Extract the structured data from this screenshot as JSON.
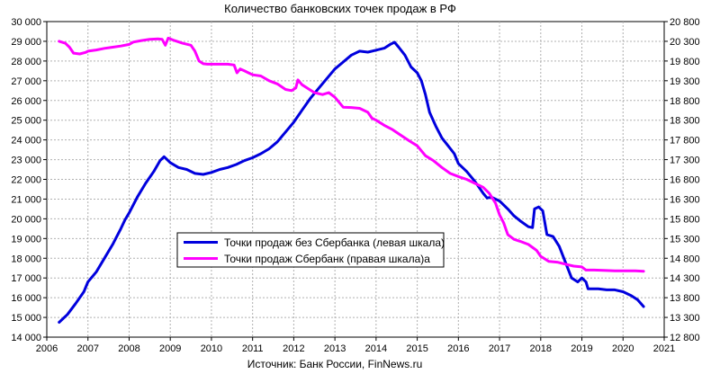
{
  "chart_data": {
    "type": "line",
    "title": "Количество банковских  точек продаж в РФ",
    "source": "Источник: Банк России, FinNews.ru",
    "x_range": [
      2006,
      2021
    ],
    "x_ticks": [
      "2006",
      "2007",
      "2008",
      "2009",
      "2010",
      "2011",
      "2012",
      "2013",
      "2014",
      "2015",
      "2016",
      "2017",
      "2018",
      "2019",
      "2020",
      "2021"
    ],
    "left_axis": {
      "range": [
        14000,
        30000
      ],
      "ticks": [
        "14 000",
        "15 000",
        "16 000",
        "17 000",
        "18 000",
        "19 000",
        "20 000",
        "21 000",
        "22 000",
        "23 000",
        "24 000",
        "25 000",
        "26 000",
        "27 000",
        "28 000",
        "29 000",
        "30 000"
      ]
    },
    "right_axis": {
      "range": [
        12800,
        20800
      ],
      "ticks": [
        "12 800",
        "13 300",
        "13 800",
        "14 300",
        "14 800",
        "15 300",
        "15 800",
        "16 300",
        "16 800",
        "17 300",
        "17 800",
        "18 300",
        "18 800",
        "19 300",
        "19 800",
        "20 300",
        "20 800"
      ]
    },
    "grid": true,
    "legend_position": "center-left",
    "series": [
      {
        "name": "Точки продаж без Сбербанка (левая шкала)",
        "axis": "left",
        "color": "#0000dd",
        "points": [
          [
            2006.3,
            14750
          ],
          [
            2006.5,
            15150
          ],
          [
            2006.7,
            15700
          ],
          [
            2006.9,
            16300
          ],
          [
            2007.0,
            16800
          ],
          [
            2007.2,
            17300
          ],
          [
            2007.4,
            18000
          ],
          [
            2007.6,
            18700
          ],
          [
            2007.8,
            19500
          ],
          [
            2007.9,
            19950
          ],
          [
            2008.0,
            20300
          ],
          [
            2008.2,
            21100
          ],
          [
            2008.4,
            21800
          ],
          [
            2008.6,
            22400
          ],
          [
            2008.75,
            22950
          ],
          [
            2008.85,
            23150
          ],
          [
            2009.0,
            22850
          ],
          [
            2009.2,
            22600
          ],
          [
            2009.4,
            22500
          ],
          [
            2009.6,
            22300
          ],
          [
            2009.8,
            22250
          ],
          [
            2010.0,
            22350
          ],
          [
            2010.2,
            22500
          ],
          [
            2010.4,
            22600
          ],
          [
            2010.6,
            22750
          ],
          [
            2010.8,
            22950
          ],
          [
            2011.0,
            23100
          ],
          [
            2011.2,
            23300
          ],
          [
            2011.4,
            23550
          ],
          [
            2011.6,
            23900
          ],
          [
            2011.8,
            24400
          ],
          [
            2012.0,
            24900
          ],
          [
            2012.2,
            25500
          ],
          [
            2012.4,
            26100
          ],
          [
            2012.6,
            26600
          ],
          [
            2012.8,
            27100
          ],
          [
            2013.0,
            27600
          ],
          [
            2013.2,
            27950
          ],
          [
            2013.4,
            28300
          ],
          [
            2013.6,
            28500
          ],
          [
            2013.8,
            28450
          ],
          [
            2014.0,
            28550
          ],
          [
            2014.2,
            28650
          ],
          [
            2014.35,
            28850
          ],
          [
            2014.45,
            28950
          ],
          [
            2014.55,
            28700
          ],
          [
            2014.7,
            28300
          ],
          [
            2014.85,
            27700
          ],
          [
            2015.0,
            27400
          ],
          [
            2015.1,
            27000
          ],
          [
            2015.2,
            26300
          ],
          [
            2015.3,
            25400
          ],
          [
            2015.45,
            24700
          ],
          [
            2015.6,
            24100
          ],
          [
            2015.75,
            23700
          ],
          [
            2015.9,
            23300
          ],
          [
            2016.0,
            22800
          ],
          [
            2016.2,
            22400
          ],
          [
            2016.4,
            21900
          ],
          [
            2016.6,
            21300
          ],
          [
            2016.7,
            21050
          ],
          [
            2016.8,
            21100
          ],
          [
            2017.0,
            20900
          ],
          [
            2017.2,
            20500
          ],
          [
            2017.35,
            20150
          ],
          [
            2017.5,
            19900
          ],
          [
            2017.7,
            19600
          ],
          [
            2017.8,
            19550
          ],
          [
            2017.85,
            20500
          ],
          [
            2017.95,
            20600
          ],
          [
            2018.05,
            20400
          ],
          [
            2018.15,
            19200
          ],
          [
            2018.3,
            19100
          ],
          [
            2018.45,
            18600
          ],
          [
            2018.6,
            17800
          ],
          [
            2018.75,
            17000
          ],
          [
            2018.9,
            16800
          ],
          [
            2019.0,
            17000
          ],
          [
            2019.1,
            16800
          ],
          [
            2019.15,
            16450
          ],
          [
            2019.4,
            16450
          ],
          [
            2019.6,
            16400
          ],
          [
            2019.8,
            16400
          ],
          [
            2020.0,
            16300
          ],
          [
            2020.2,
            16100
          ],
          [
            2020.35,
            15900
          ],
          [
            2020.5,
            15550
          ]
        ]
      },
      {
        "name": "Точки продаж Сбербанк (правая шкала)а",
        "axis": "right",
        "color": "#ff00ff",
        "points": [
          [
            2006.3,
            20300
          ],
          [
            2006.45,
            20250
          ],
          [
            2006.55,
            20150
          ],
          [
            2006.65,
            20000
          ],
          [
            2006.8,
            19980
          ],
          [
            2006.95,
            20020
          ],
          [
            2007.0,
            20050
          ],
          [
            2007.2,
            20080
          ],
          [
            2007.4,
            20120
          ],
          [
            2007.6,
            20150
          ],
          [
            2007.8,
            20180
          ],
          [
            2008.0,
            20220
          ],
          [
            2008.1,
            20280
          ],
          [
            2008.3,
            20320
          ],
          [
            2008.5,
            20350
          ],
          [
            2008.7,
            20360
          ],
          [
            2008.8,
            20350
          ],
          [
            2008.88,
            20200
          ],
          [
            2008.95,
            20380
          ],
          [
            2009.1,
            20320
          ],
          [
            2009.3,
            20250
          ],
          [
            2009.5,
            20200
          ],
          [
            2009.6,
            20050
          ],
          [
            2009.7,
            19800
          ],
          [
            2009.8,
            19730
          ],
          [
            2009.9,
            19720
          ],
          [
            2010.0,
            19720
          ],
          [
            2010.2,
            19720
          ],
          [
            2010.4,
            19720
          ],
          [
            2010.55,
            19700
          ],
          [
            2010.62,
            19500
          ],
          [
            2010.7,
            19600
          ],
          [
            2010.8,
            19550
          ],
          [
            2010.9,
            19500
          ],
          [
            2011.0,
            19450
          ],
          [
            2011.2,
            19420
          ],
          [
            2011.4,
            19300
          ],
          [
            2011.6,
            19220
          ],
          [
            2011.8,
            19080
          ],
          [
            2011.95,
            19050
          ],
          [
            2012.05,
            19120
          ],
          [
            2012.1,
            19320
          ],
          [
            2012.2,
            19200
          ],
          [
            2012.35,
            19100
          ],
          [
            2012.5,
            19000
          ],
          [
            2012.7,
            18950
          ],
          [
            2012.85,
            19000
          ],
          [
            2013.0,
            18880
          ],
          [
            2013.2,
            18630
          ],
          [
            2013.4,
            18620
          ],
          [
            2013.6,
            18600
          ],
          [
            2013.8,
            18500
          ],
          [
            2013.9,
            18350
          ],
          [
            2014.0,
            18300
          ],
          [
            2014.2,
            18170
          ],
          [
            2014.4,
            18060
          ],
          [
            2014.6,
            17920
          ],
          [
            2014.8,
            17780
          ],
          [
            2015.0,
            17650
          ],
          [
            2015.2,
            17400
          ],
          [
            2015.4,
            17270
          ],
          [
            2015.6,
            17100
          ],
          [
            2015.8,
            16950
          ],
          [
            2016.0,
            16870
          ],
          [
            2016.2,
            16800
          ],
          [
            2016.4,
            16700
          ],
          [
            2016.6,
            16600
          ],
          [
            2016.75,
            16450
          ],
          [
            2016.9,
            16200
          ],
          [
            2017.0,
            15900
          ],
          [
            2017.1,
            15700
          ],
          [
            2017.2,
            15400
          ],
          [
            2017.35,
            15280
          ],
          [
            2017.5,
            15230
          ],
          [
            2017.7,
            15150
          ],
          [
            2017.9,
            15000
          ],
          [
            2018.0,
            14850
          ],
          [
            2018.2,
            14720
          ],
          [
            2018.4,
            14700
          ],
          [
            2018.6,
            14650
          ],
          [
            2018.8,
            14600
          ],
          [
            2019.0,
            14580
          ],
          [
            2019.1,
            14500
          ],
          [
            2019.3,
            14500
          ],
          [
            2019.6,
            14490
          ],
          [
            2019.8,
            14480
          ],
          [
            2020.0,
            14480
          ],
          [
            2020.3,
            14480
          ],
          [
            2020.5,
            14470
          ]
        ]
      }
    ]
  }
}
